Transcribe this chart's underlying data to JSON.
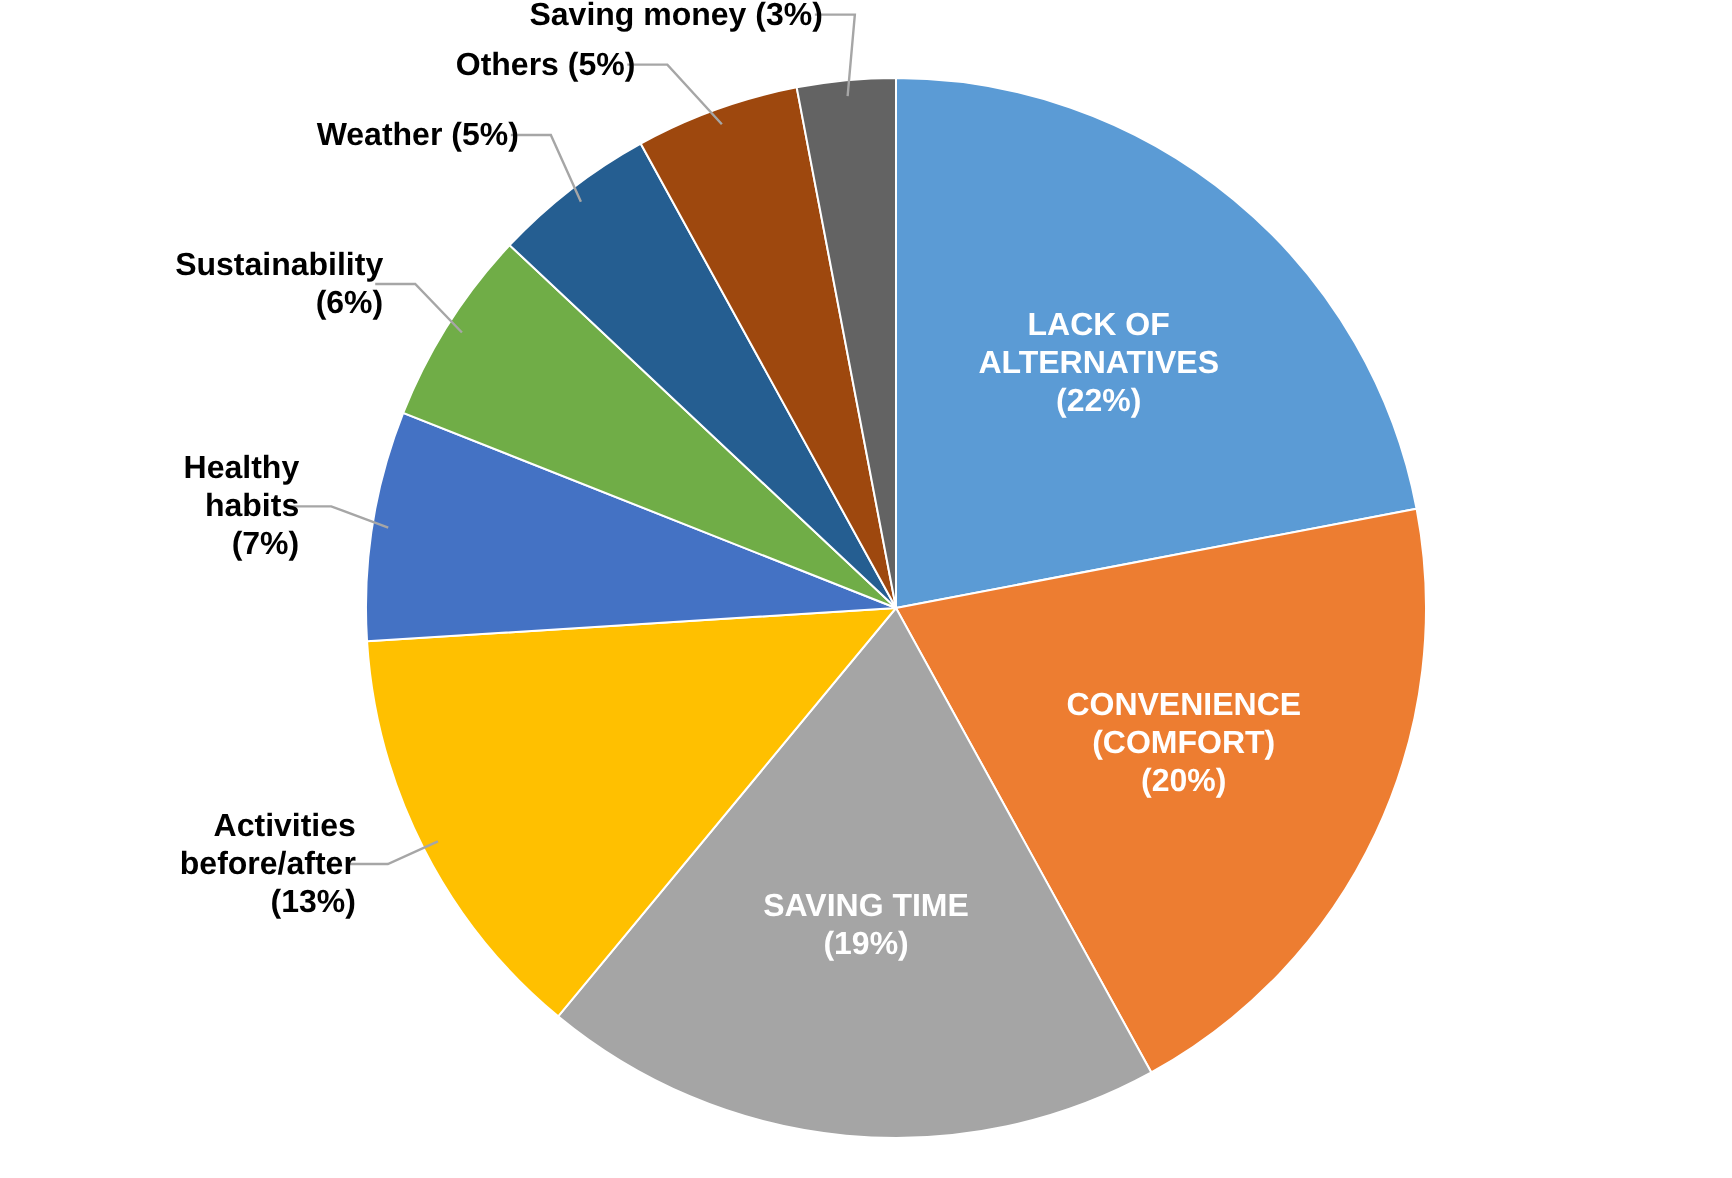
{
  "chart_data": {
    "type": "pie",
    "categories": [
      "LACK OF ALTERNATIVES",
      "CONVENIENCE (COMFORT)",
      "SAVING TIME",
      "Activities before/after",
      "Healthy habits",
      "Sustainability",
      "Weather",
      "Others",
      "Saving money"
    ],
    "values": [
      22,
      20,
      19,
      13,
      7,
      6,
      5,
      5,
      3
    ],
    "value_labels": [
      "(22%)",
      "(20%)",
      "(19%)",
      "(13%)",
      "(7%)",
      "(6%)",
      "(5%)",
      "(5%)",
      "(3%)"
    ],
    "colors": [
      "#5b9bd5",
      "#ed7d31",
      "#a5a5a5",
      "#ffc000",
      "#4472c4",
      "#70ad47",
      "#255e91",
      "#9e480e",
      "#636363"
    ],
    "legend": false
  }
}
